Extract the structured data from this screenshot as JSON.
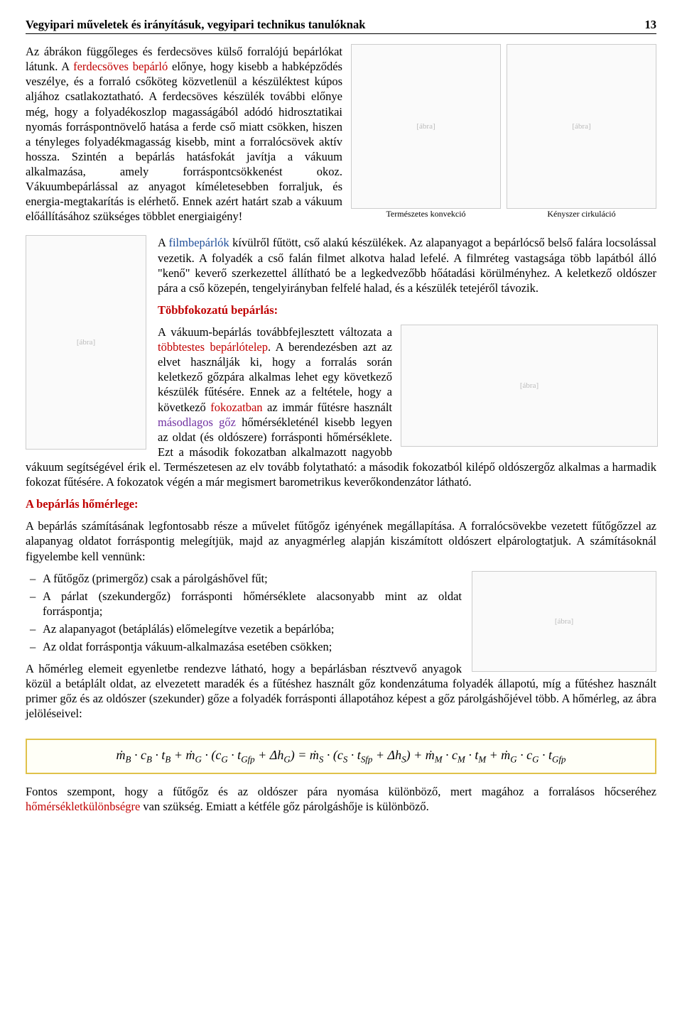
{
  "header": {
    "title": "Vegyipari műveletek és irányításuk, vegyipari technikus tanulóknak",
    "page": "13"
  },
  "p1a": "Az ábrákon függőleges és ferdecsöves külső forralójú bepárlókat látunk. A ",
  "p1b": "ferdecsöves bepárló",
  "p1c": " előnye, hogy kisebb a habképződés veszélye, és a forraló csőköteg közvetlenül a készüléktest kúpos aljához csatlakoztatható. A ferdecsöves készülék további előnye még, hogy a folyadékoszlop magasságából adódó hidrosztatikai nyomás forráspontnövelő hatása a ferde cső miatt csökken, hiszen a tényleges folyadékmagasság kisebb, mint a forralócsövek aktív hossza. Szintén a bepárlás hatásfokát javítja a vákuum alkalmazása, amely forráspontcsökkenést okoz. Vákuumbepárlással az anyagot kíméletesebben forraljuk, és energia-megtakarítás is elérhető. Ennek azért határt szab a vákuum előállításához szükséges többlet energiaigény!",
  "fig_pair": {
    "left_caption": "Természetes konvekció",
    "right_caption": "Kényszer cirkuláció"
  },
  "p2a": "A ",
  "p2b": "filmbepárlók",
  "p2c": " kívülről fűtött, cső alakú készülékek. Az alapanyagot a bepárlócső belső falára locsolással vezetik. A folyadék a cső falán filmet alkotva halad lefelé. A filmréteg vastagsága több lapátból álló \"kenő\" keverő szerkezettel állítható be a legkedvezőbb hőátadási körülményhez. A keletkező oldószer pára a cső közepén, tengelyirányban felfelé halad, és a készülék tetejéről távozik.",
  "h_multi": "Többfokozatú bepárlás:",
  "p3a": "A vákuum-bepárlás továbbfejlesztett változata a ",
  "p3b": "többtestes bepárlótelep",
  "p3c": ". A berendezésben azt az elvet használják ki, hogy a forralás során keletkező gőzpára alkalmas lehet egy következő készülék fűtésére. Ennek az a feltétele, hogy a következő ",
  "p3d": "fokozatban",
  "p3e": " az immár fűtésre használt ",
  "p3f": "másodlagos gőz",
  "p3g": " hőmérsékleténél kisebb legyen az oldat (és oldószere) forrásponti hőmérséklete. Ezt a második fokozatban alkalmazott nagyobb vákuum segítségével érik el. Természetesen az elv tovább folytatható: a második fokozatból kilépő oldószergőz alkalmas a harmadik fokozat fűtésére. A fokozatok végén a már megismert barometrikus keverőkondenzátor látható.",
  "h_heat": "A bepárlás hőmérlege:",
  "p4": "A bepárlás számításának legfontosabb része a művelet fűtőgőz igényének megállapítása. A forralócsövekbe vezetett fűtőgőzzel az alapanyag oldatot forráspontig melegítjük, majd az anyagmérleg alapján kiszámított oldószert elpárologtatjuk. A számításoknál figyelembe kell vennünk:",
  "bullets": [
    "A fűtőgőz (primergőz) csak a párolgáshővel fűt;",
    "A párlat (szekundergőz) forrásponti hőmérséklete alacsonyabb mint az oldat forráspontja;",
    "Az alapanyagot (betáplálás) előmelegítve vezetik a bepárlóba;",
    "Az oldat forráspontja vákuum-alkalmazása esetében csökken;"
  ],
  "p5": "A hőmérleg elemeit egyenletbe rendezve látható, hogy a bepárlásban résztvevő anyagok közül a betáplált oldat, az elvezetett maradék és a fűtéshez használt gőz kondenzátuma folyadék állapotú, míg a fűtéshez használt primer gőz és az oldószer (szekunder) gőze a folyadék forrásponti állapotához képest a gőz párolgáshőjével több. A hőmérleg, az ábra jelöléseivel:",
  "equation": "ṁ_B · c_B · t_B + ṁ_G · (c_G · t_Gfp + Δh_G) = ṁ_S · (c_S · t_Sfp + Δh_S) + ṁ_M · c_M · t_M + ṁ_G · c_G · t_Gfp",
  "p6a": "Fontos szempont, hogy a fűtőgőz és az oldószer pára nyomása különböző, mert magához a forralásos hőcseréhez ",
  "p6b": "hőmérsékletkülönbségre",
  "p6c": " van szükség. Emiatt a kétféle gőz párolgáshője is különböző.",
  "placeholders": {
    "diagram": "[ábra]"
  }
}
